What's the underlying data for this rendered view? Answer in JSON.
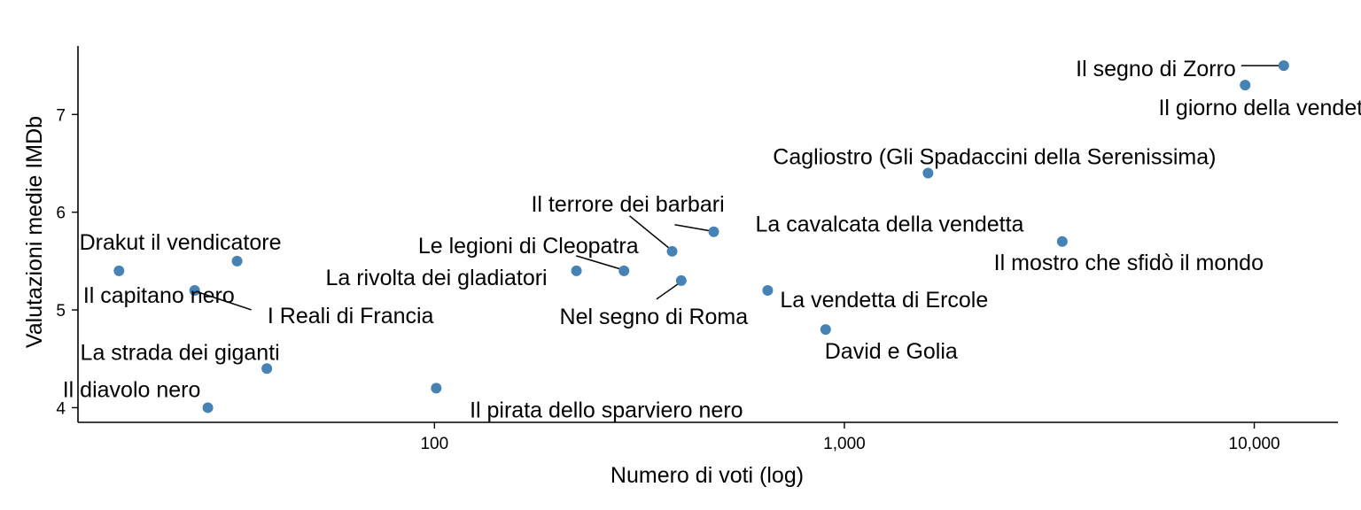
{
  "chart_data": {
    "type": "scatter",
    "title": "",
    "xlabel": "Numero di voti (log)",
    "ylabel": "Valutazioni medie IMDb",
    "x_scale": "log10",
    "xlim": [
      13.5,
      16000
    ],
    "ylim": [
      3.85,
      7.7
    ],
    "x_ticks": [
      100,
      1000,
      10000
    ],
    "x_tick_labels": [
      "100",
      "1,000",
      "10,000"
    ],
    "y_ticks": [
      4,
      5,
      6,
      7
    ],
    "y_tick_labels": [
      "4",
      "5",
      "6",
      "7"
    ],
    "grid": false,
    "point_color": "#4682B4",
    "points": [
      {
        "label": "Il segno di Zorro",
        "x": 11800,
        "y": 7.5
      },
      {
        "label": "Il giorno della vendetta",
        "x": 9500,
        "y": 7.3
      },
      {
        "label": "Cagliostro (Gli Spadaccini della Serenissima)",
        "x": 1600,
        "y": 6.4
      },
      {
        "label": "Il terrore dei barbari",
        "x": 380,
        "y": 5.6
      },
      {
        "label": "La cavalcata della vendetta",
        "x": 480,
        "y": 5.8
      },
      {
        "label": "Il mostro che sfidò il mondo",
        "x": 3400,
        "y": 5.7
      },
      {
        "label": "Drakut il vendicatore",
        "x": 33,
        "y": 5.5
      },
      {
        "label": "Il capitano nero",
        "x": 17,
        "y": 5.4
      },
      {
        "label": "Le legioni di Cleopatra",
        "x": 290,
        "y": 5.4
      },
      {
        "label": "La rivolta dei gladiatori",
        "x": 222,
        "y": 5.4
      },
      {
        "label": "Nel segno di Roma",
        "x": 400,
        "y": 5.3
      },
      {
        "label": "I Reali di Francia",
        "x": 26,
        "y": 5.2
      },
      {
        "label": "La vendetta di Ercole",
        "x": 650,
        "y": 5.2
      },
      {
        "label": "David e Golia",
        "x": 900,
        "y": 4.8
      },
      {
        "label": "La strada dei giganti",
        "x": 39,
        "y": 4.4
      },
      {
        "label": "Il pirata dello sparviero nero",
        "x": 101,
        "y": 4.2
      },
      {
        "label": "Il diavolo nero",
        "x": 28,
        "y": 4.0
      }
    ]
  }
}
